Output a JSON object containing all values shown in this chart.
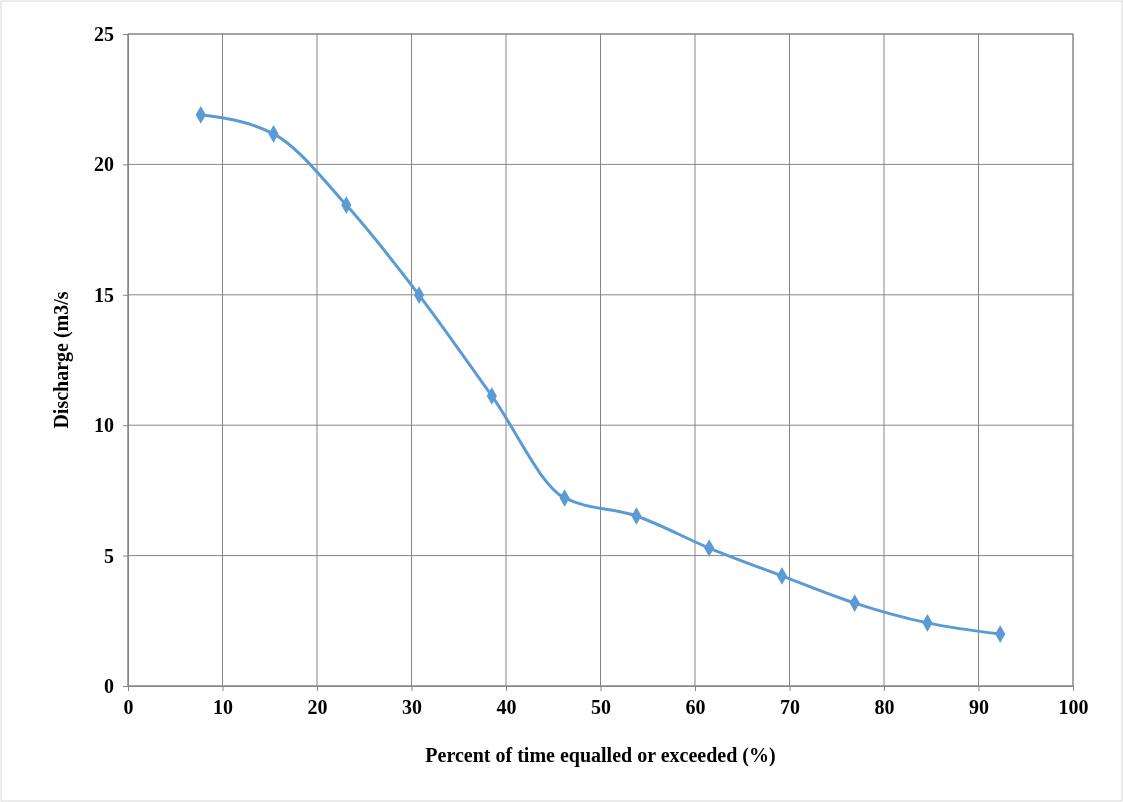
{
  "chart_data": {
    "type": "line",
    "xlabel": "Percent of time equalled or exceeded (%)",
    "ylabel": "Discharge (m3/s",
    "x": [
      7.7,
      15.4,
      23.1,
      30.8,
      38.5,
      46.2,
      53.8,
      61.5,
      69.2,
      76.9,
      84.6,
      92.3
    ],
    "series": [
      {
        "color": "#5b9bd5",
        "values": [
          21.9,
          21.17,
          18.44,
          14.99,
          11.12,
          7.21,
          6.52,
          5.29,
          4.22,
          3.18,
          2.42,
          1.99
        ]
      }
    ],
    "xlim": [
      0,
      100
    ],
    "xticks": [
      0,
      10,
      20,
      30,
      40,
      50,
      60,
      70,
      80,
      90,
      100
    ],
    "ylim": [
      0,
      25
    ],
    "yticks": [
      0,
      5,
      10,
      15,
      20,
      25
    ],
    "grid": true,
    "marker": "diamond",
    "line_style": "solid"
  }
}
